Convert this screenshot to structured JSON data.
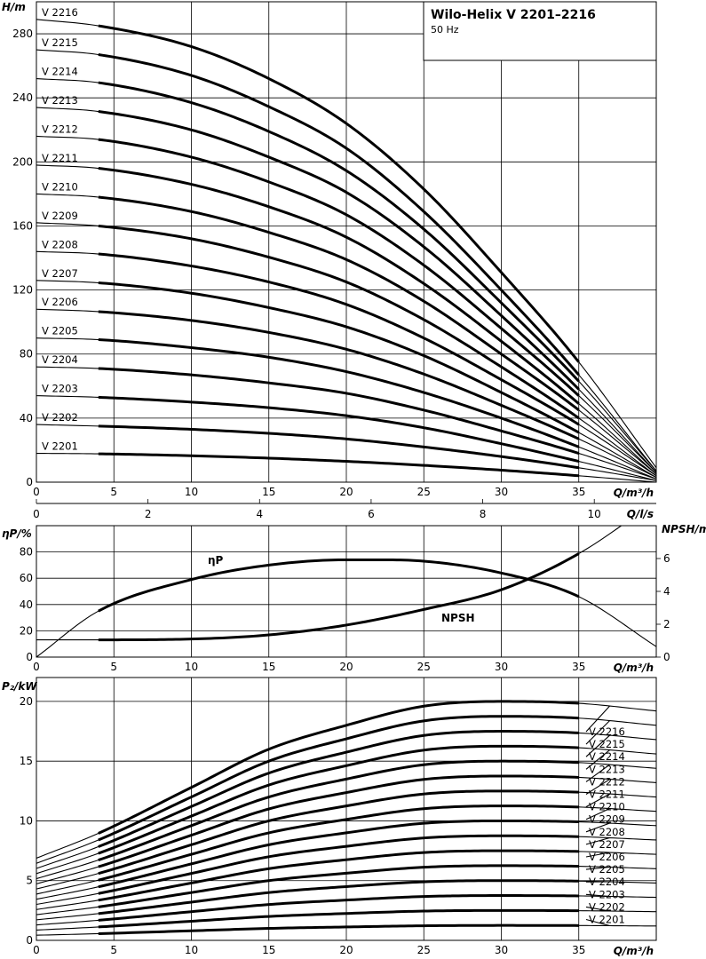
{
  "title": "Wilo-Helix V 2201–2216",
  "subtitle": "50 Hz",
  "chart_data": [
    {
      "type": "line",
      "panel": "head",
      "ylabel": "H/m",
      "xlabel": "Q/m³/h",
      "xlim": [
        0,
        40
      ],
      "ylim": [
        0,
        300
      ],
      "x_ticks": [
        "0",
        "5",
        "10",
        "15",
        "20",
        "25",
        "30",
        "35"
      ],
      "y_ticks": [
        "0",
        "40",
        "80",
        "120",
        "160",
        "200",
        "240",
        "280"
      ],
      "q_range": [
        4,
        35
      ],
      "series": [
        {
          "name": "V 2201",
          "x": [
            0,
            4,
            10,
            15,
            20,
            25,
            30,
            35,
            40
          ],
          "values": [
            18,
            17.7,
            16.5,
            15,
            13,
            10.5,
            7.5,
            4,
            0
          ]
        },
        {
          "name": "V 2202",
          "x": [
            0,
            4,
            10,
            15,
            20,
            25,
            30,
            35,
            40
          ],
          "values": [
            36,
            35,
            33,
            30.5,
            27,
            22,
            16,
            9,
            1
          ]
        },
        {
          "name": "V 2203",
          "x": [
            0,
            4,
            10,
            15,
            20,
            25,
            30,
            35,
            40
          ],
          "values": [
            54,
            53,
            50,
            46.5,
            41.5,
            34,
            24,
            13,
            1
          ]
        },
        {
          "name": "V 2204",
          "x": [
            0,
            4,
            10,
            15,
            20,
            25,
            30,
            35,
            40
          ],
          "values": [
            72,
            71,
            67,
            62,
            55.5,
            45,
            32,
            18,
            2
          ]
        },
        {
          "name": "V 2205",
          "x": [
            0,
            4,
            10,
            15,
            20,
            25,
            30,
            35,
            40
          ],
          "values": [
            90,
            89,
            84,
            78,
            69,
            56,
            40,
            22,
            2
          ]
        },
        {
          "name": "V 2206",
          "x": [
            0,
            4,
            10,
            15,
            20,
            25,
            30,
            35,
            40
          ],
          "values": [
            108,
            106.5,
            101,
            93.5,
            83,
            67.5,
            48,
            27,
            3
          ]
        },
        {
          "name": "V 2207",
          "x": [
            0,
            4,
            10,
            15,
            20,
            25,
            30,
            35,
            40
          ],
          "values": [
            126,
            124.5,
            118,
            109,
            97,
            79,
            56,
            31,
            3
          ]
        },
        {
          "name": "V 2208",
          "x": [
            0,
            4,
            10,
            15,
            20,
            25,
            30,
            35,
            40
          ],
          "values": [
            144,
            142.5,
            135,
            125,
            111,
            90,
            64,
            36,
            4
          ]
        },
        {
          "name": "V 2209",
          "x": [
            0,
            4,
            10,
            15,
            20,
            25,
            30,
            35,
            40
          ],
          "values": [
            162,
            160,
            152,
            140.5,
            125,
            101.5,
            72,
            40,
            4
          ]
        },
        {
          "name": "V 2210",
          "x": [
            0,
            4,
            10,
            15,
            20,
            25,
            30,
            35,
            40
          ],
          "values": [
            180,
            178,
            169,
            156,
            139,
            113,
            80,
            45,
            5
          ]
        },
        {
          "name": "V 2211",
          "x": [
            0,
            4,
            10,
            15,
            20,
            25,
            30,
            35,
            40
          ],
          "values": [
            198,
            196,
            186,
            172,
            153,
            124,
            88,
            49,
            5
          ]
        },
        {
          "name": "V 2212",
          "x": [
            0,
            4,
            10,
            15,
            20,
            25,
            30,
            35,
            40
          ],
          "values": [
            216,
            214,
            203,
            187.5,
            167,
            135.5,
            96,
            54,
            6
          ]
        },
        {
          "name": "V 2213",
          "x": [
            0,
            4,
            10,
            15,
            20,
            25,
            30,
            35,
            40
          ],
          "values": [
            234,
            231.5,
            220,
            203,
            181,
            147,
            104,
            58,
            6
          ]
        },
        {
          "name": "V 2214",
          "x": [
            0,
            4,
            10,
            15,
            20,
            25,
            30,
            35,
            40
          ],
          "values": [
            252,
            249.5,
            237,
            219,
            194.5,
            158,
            112,
            63,
            7
          ]
        },
        {
          "name": "V 2215",
          "x": [
            0,
            4,
            10,
            15,
            20,
            25,
            30,
            35,
            40
          ],
          "values": [
            270,
            267,
            254,
            234.5,
            208.5,
            169,
            120,
            67,
            7
          ]
        },
        {
          "name": "V 2216",
          "x": [
            0,
            4,
            10,
            15,
            20,
            25,
            30,
            35,
            40
          ],
          "values": [
            289,
            285,
            272,
            252,
            224,
            183,
            131,
            75,
            9
          ]
        }
      ]
    },
    {
      "type": "line",
      "panel": "flow-ls",
      "xlabel": "Q/l/s",
      "xlim": [
        0,
        11.11
      ],
      "x_ticks": [
        "0",
        "2",
        "4",
        "6",
        "8",
        "10"
      ]
    },
    {
      "type": "line",
      "panel": "efficiency-npsh",
      "ylabel": "ηP/%",
      "y2label": "NPSH/m",
      "xlabel": "Q/m³/h",
      "xlim": [
        0,
        40
      ],
      "ylim": [
        0,
        100
      ],
      "y2lim": [
        0,
        8
      ],
      "x_ticks": [
        "0",
        "5",
        "10",
        "15",
        "20",
        "25",
        "30",
        "35"
      ],
      "y_ticks": [
        "0",
        "20",
        "40",
        "60",
        "80"
      ],
      "y2_ticks": [
        "0",
        "2",
        "4",
        "6"
      ],
      "q_range": [
        4,
        35
      ],
      "series": [
        {
          "name": "ηP",
          "label": "ηP",
          "x": [
            0,
            4,
            10,
            15,
            20,
            22,
            25,
            30,
            35,
            40
          ],
          "values": [
            0,
            35,
            59,
            70,
            74,
            74,
            73,
            64,
            46,
            8
          ]
        },
        {
          "name": "NPSH",
          "label": "NPSH",
          "axis": "y2",
          "x": [
            0,
            4,
            10,
            15,
            20,
            25,
            30,
            35,
            40
          ],
          "values": [
            1.05,
            1.05,
            1.1,
            1.35,
            1.95,
            2.9,
            4.1,
            6.3,
            9.5
          ]
        }
      ]
    },
    {
      "type": "line",
      "panel": "power",
      "ylabel": "P₂/kW",
      "xlabel": "Q/m³/h",
      "xlim": [
        0,
        40
      ],
      "ylim": [
        0,
        22
      ],
      "x_ticks": [
        "0",
        "5",
        "10",
        "15",
        "20",
        "25",
        "30",
        "35"
      ],
      "y_ticks": [
        "0",
        "5",
        "10",
        "15",
        "20"
      ],
      "q_range": [
        4,
        35
      ],
      "series": [
        {
          "name": "V 2201",
          "x": [
            0,
            4,
            10,
            15,
            20,
            25,
            30,
            35,
            40
          ],
          "values": [
            0.43,
            0.56,
            0.8,
            1.0,
            1.12,
            1.22,
            1.25,
            1.24,
            1.2
          ]
        },
        {
          "name": "V 2202",
          "x": [
            0,
            4,
            10,
            15,
            20,
            25,
            30,
            35,
            40
          ],
          "values": [
            0.86,
            1.12,
            1.6,
            2.0,
            2.25,
            2.45,
            2.5,
            2.48,
            2.4
          ]
        },
        {
          "name": "V 2203",
          "x": [
            0,
            4,
            10,
            15,
            20,
            25,
            30,
            35,
            40
          ],
          "values": [
            1.29,
            1.68,
            2.4,
            3.0,
            3.37,
            3.67,
            3.75,
            3.72,
            3.6
          ]
        },
        {
          "name": "V 2204",
          "x": [
            0,
            4,
            10,
            15,
            20,
            25,
            30,
            35,
            40
          ],
          "values": [
            1.72,
            2.24,
            3.2,
            4.0,
            4.5,
            4.9,
            5.0,
            4.96,
            4.8
          ]
        },
        {
          "name": "V 2205",
          "x": [
            0,
            4,
            10,
            15,
            20,
            25,
            30,
            35,
            40
          ],
          "values": [
            2.15,
            2.8,
            4.0,
            5.0,
            5.62,
            6.12,
            6.25,
            6.2,
            6.0
          ]
        },
        {
          "name": "V 2206",
          "x": [
            0,
            4,
            10,
            15,
            20,
            25,
            30,
            35,
            40
          ],
          "values": [
            2.58,
            3.36,
            4.8,
            6.0,
            6.75,
            7.35,
            7.5,
            7.44,
            7.2
          ]
        },
        {
          "name": "V 2207",
          "x": [
            0,
            4,
            10,
            15,
            20,
            25,
            30,
            35,
            40
          ],
          "values": [
            3.01,
            3.92,
            5.6,
            7.0,
            7.87,
            8.57,
            8.75,
            8.68,
            8.4
          ]
        },
        {
          "name": "V 2208",
          "x": [
            0,
            4,
            10,
            15,
            20,
            25,
            30,
            35,
            40
          ],
          "values": [
            3.44,
            4.48,
            6.4,
            8.0,
            9.0,
            9.8,
            10.0,
            9.92,
            9.6
          ]
        },
        {
          "name": "V 2209",
          "x": [
            0,
            4,
            10,
            15,
            20,
            25,
            30,
            35,
            40
          ],
          "values": [
            3.87,
            5.04,
            7.2,
            9.0,
            10.12,
            11.02,
            11.25,
            11.16,
            10.8
          ]
        },
        {
          "name": "V 2210",
          "x": [
            0,
            4,
            10,
            15,
            20,
            25,
            30,
            35,
            40
          ],
          "values": [
            4.3,
            5.6,
            8.0,
            10.0,
            11.25,
            12.25,
            12.5,
            12.4,
            12.0
          ]
        },
        {
          "name": "V 2211",
          "x": [
            0,
            4,
            10,
            15,
            20,
            25,
            30,
            35,
            40
          ],
          "values": [
            4.73,
            6.16,
            8.8,
            11.0,
            12.37,
            13.47,
            13.75,
            13.64,
            13.2
          ]
        },
        {
          "name": "V 2212",
          "x": [
            0,
            4,
            10,
            15,
            20,
            25,
            30,
            35,
            40
          ],
          "values": [
            5.16,
            6.72,
            9.6,
            12.0,
            13.5,
            14.7,
            15.0,
            14.88,
            14.4
          ]
        },
        {
          "name": "V 2213",
          "x": [
            0,
            4,
            10,
            15,
            20,
            25,
            30,
            35,
            40
          ],
          "values": [
            5.59,
            7.28,
            10.4,
            13.0,
            14.62,
            15.92,
            16.25,
            16.12,
            15.6
          ]
        },
        {
          "name": "V 2214",
          "x": [
            0,
            4,
            10,
            15,
            20,
            25,
            30,
            35,
            40
          ],
          "values": [
            6.02,
            7.84,
            11.2,
            14.0,
            15.75,
            17.15,
            17.5,
            17.36,
            16.8
          ]
        },
        {
          "name": "V 2215",
          "x": [
            0,
            4,
            10,
            15,
            20,
            25,
            30,
            35,
            40
          ],
          "values": [
            6.45,
            8.4,
            12.0,
            15.0,
            16.87,
            18.37,
            18.75,
            18.6,
            18.0
          ]
        },
        {
          "name": "V 2216",
          "x": [
            0,
            4,
            10,
            15,
            20,
            25,
            30,
            35,
            40
          ],
          "values": [
            6.88,
            8.96,
            12.8,
            16.0,
            18.0,
            19.6,
            20.0,
            19.84,
            19.2
          ]
        }
      ]
    }
  ]
}
